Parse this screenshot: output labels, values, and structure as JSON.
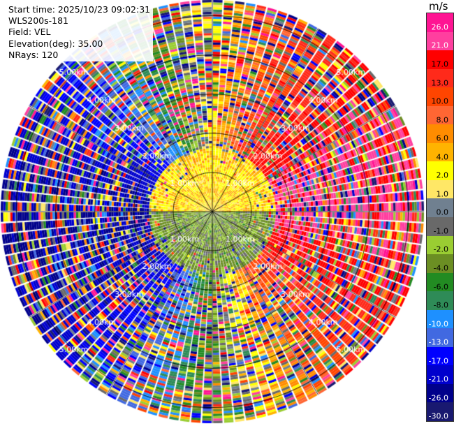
{
  "info": {
    "start_time": "Start time: 2025/10/23 09:02:31",
    "instrument": "WLS200s-181",
    "field": "Field: VEL",
    "elevation": "Elevation(deg): 35.00",
    "nrays": "NRays: 120"
  },
  "chart_data": {
    "type": "heatmap",
    "projection": "polar-ppi",
    "n_rays": 120,
    "range_rings_km": [
      1,
      2,
      3,
      4,
      5
    ],
    "ring_labels": [
      "1.00km",
      "2.00km",
      "3.00km",
      "4.00km",
      "5.00km"
    ],
    "max_range_km": 5.4,
    "spokes_deg": [
      0,
      30,
      60,
      90,
      120,
      150,
      180,
      210,
      240,
      270,
      300,
      330
    ],
    "colorbar": {
      "unit": "m/s",
      "ticks": [
        "26.0",
        "21.0",
        "17.0",
        "13.0",
        "10.0",
        "8.0",
        "6.0",
        "4.0",
        "2.0",
        "1.0",
        "0.0",
        "-1.0",
        "-2.0",
        "-4.0",
        "-6.0",
        "-8.0",
        "-10.0",
        "-13.0",
        "-17.0",
        "-21.0",
        "-26.0",
        "-30.0"
      ],
      "colors": [
        "#ff1493",
        "#ff3f9f",
        "#ff0000",
        "#ff2a1a",
        "#ff4500",
        "#ff6633",
        "#ff8c00",
        "#ffb300",
        "#ffff00",
        "#ffe766",
        "#708090",
        "#696969",
        "#9acd32",
        "#6b8e23",
        "#228b22",
        "#2e8b57",
        "#1e90ff",
        "#4169e1",
        "#0000ff",
        "#0000cd",
        "#00008b",
        "#191970"
      ]
    }
  }
}
